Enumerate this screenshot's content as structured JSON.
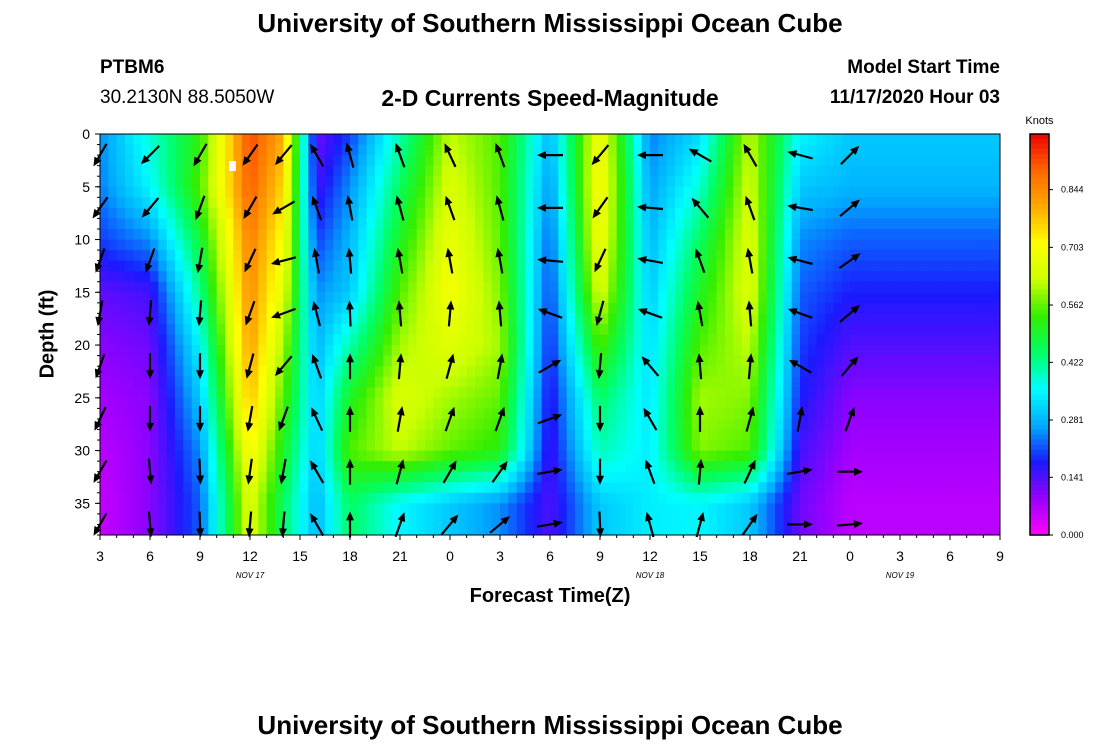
{
  "header": {
    "top_title": "University of Southern Mississippi Ocean Cube",
    "bottom_title": "University of Southern Mississippi Ocean Cube",
    "station_id": "PTBM6",
    "station_coords": "30.2130N 88.5050W",
    "chart_title": "2-D Currents Speed-Magnitude",
    "model_label": "Model Start Time",
    "model_value": "11/17/2020 Hour 03"
  },
  "colors": {
    "scale": [
      "#ff00ff",
      "#9900ff",
      "#1a1aff",
      "#00aaff",
      "#00ffff",
      "#00ff66",
      "#33ee00",
      "#ccff00",
      "#ffff00",
      "#ffaa00",
      "#ff6600",
      "#ee0000"
    ]
  },
  "chart_data": {
    "type": "heatmap",
    "title": "2-D Currents Speed-Magnitude",
    "xlabel": "Forecast Time(Z)",
    "ylabel": "Depth (ft)",
    "x_ticks": [
      "3",
      "6",
      "9",
      "12",
      "15",
      "18",
      "21",
      "0",
      "3",
      "6",
      "9",
      "12",
      "15",
      "18",
      "21",
      "0",
      "3",
      "6",
      "9"
    ],
    "date_labels": [
      {
        "text": "NOV 17",
        "tick_index": 3
      },
      {
        "text": "NOV 18",
        "tick_index": 11
      },
      {
        "text": "NOV 19",
        "tick_index": 16
      }
    ],
    "y_ticks": [
      0,
      5,
      10,
      15,
      20,
      25,
      30,
      35
    ],
    "ylim": [
      0,
      38
    ],
    "xlim_hours": [
      0,
      54
    ],
    "colorbar": {
      "unit": "Knots",
      "ticks": [
        "0.000",
        "0.141",
        "0.281",
        "0.422",
        "0.562",
        "0.703",
        "0.844"
      ],
      "range": [
        0,
        0.98
      ]
    },
    "depths": [
      0,
      5,
      10,
      15,
      20,
      25,
      30,
      35
    ],
    "columns": [
      {
        "hour": 0,
        "speed": [
          0.25,
          0.24,
          0.2,
          0.13,
          0.1,
          0.08,
          0.06,
          0.05
        ],
        "dir": [
          210,
          215,
          200,
          190,
          200,
          205,
          210,
          210
        ]
      },
      {
        "hour": 3,
        "speed": [
          0.38,
          0.35,
          0.25,
          0.15,
          0.12,
          0.1,
          0.1,
          0.1
        ],
        "dir": [
          225,
          220,
          200,
          185,
          180,
          180,
          175,
          175
        ]
      },
      {
        "hour": 6,
        "speed": [
          0.52,
          0.55,
          0.48,
          0.42,
          0.35,
          0.3,
          0.25,
          0.22
        ],
        "dir": [
          210,
          200,
          190,
          185,
          180,
          180,
          178,
          178
        ]
      },
      {
        "hour": 9,
        "speed": [
          0.92,
          0.9,
          0.86,
          0.84,
          0.82,
          0.78,
          0.72,
          0.66
        ],
        "dir": [
          215,
          210,
          205,
          200,
          195,
          190,
          188,
          185
        ]
      },
      {
        "hour": 11,
        "speed": [
          0.8,
          0.75,
          0.7,
          0.66,
          0.6,
          0.55,
          0.5,
          0.45
        ],
        "dir": [
          220,
          240,
          255,
          250,
          220,
          200,
          190,
          185
        ]
      },
      {
        "hour": 13,
        "speed": [
          0.12,
          0.15,
          0.2,
          0.25,
          0.28,
          0.3,
          0.3,
          0.28
        ],
        "dir": [
          330,
          340,
          350,
          345,
          340,
          335,
          330,
          330
        ]
      },
      {
        "hour": 15,
        "speed": [
          0.2,
          0.25,
          0.28,
          0.3,
          0.4,
          0.5,
          0.55,
          0.45
        ],
        "dir": [
          345,
          350,
          355,
          358,
          0,
          0,
          0,
          0
        ]
      },
      {
        "hour": 18,
        "speed": [
          0.4,
          0.45,
          0.5,
          0.55,
          0.6,
          0.65,
          0.62,
          0.35
        ],
        "dir": [
          340,
          345,
          350,
          355,
          5,
          10,
          15,
          20
        ]
      },
      {
        "hour": 21,
        "speed": [
          0.62,
          0.65,
          0.68,
          0.7,
          0.66,
          0.6,
          0.56,
          0.3
        ],
        "dir": [
          335,
          340,
          350,
          5,
          15,
          20,
          30,
          40
        ]
      },
      {
        "hour": 24,
        "speed": [
          0.55,
          0.55,
          0.56,
          0.58,
          0.6,
          0.56,
          0.52,
          0.25
        ],
        "dir": [
          340,
          345,
          350,
          355,
          10,
          20,
          35,
          50
        ]
      },
      {
        "hour": 27,
        "speed": [
          0.28,
          0.25,
          0.22,
          0.2,
          0.18,
          0.16,
          0.15,
          0.14
        ],
        "dir": [
          270,
          270,
          275,
          290,
          60,
          70,
          80,
          80
        ]
      },
      {
        "hour": 30,
        "speed": [
          0.7,
          0.72,
          0.7,
          0.65,
          0.55,
          0.45,
          0.4,
          0.3
        ],
        "dir": [
          220,
          215,
          205,
          195,
          185,
          180,
          180,
          178
        ]
      },
      {
        "hour": 33,
        "speed": [
          0.24,
          0.26,
          0.28,
          0.3,
          0.32,
          0.33,
          0.34,
          0.34
        ],
        "dir": [
          270,
          275,
          280,
          290,
          320,
          330,
          340,
          345
        ]
      },
      {
        "hour": 36,
        "speed": [
          0.32,
          0.38,
          0.45,
          0.5,
          0.55,
          0.6,
          0.58,
          0.35
        ],
        "dir": [
          300,
          320,
          340,
          350,
          355,
          0,
          5,
          15
        ]
      },
      {
        "hour": 39,
        "speed": [
          0.62,
          0.64,
          0.66,
          0.66,
          0.62,
          0.58,
          0.55,
          0.3
        ],
        "dir": [
          330,
          340,
          350,
          355,
          5,
          15,
          25,
          35
        ]
      },
      {
        "hour": 42,
        "speed": [
          0.35,
          0.3,
          0.25,
          0.22,
          0.2,
          0.18,
          0.15,
          0.12
        ],
        "dir": [
          285,
          280,
          285,
          290,
          300,
          10,
          80,
          90
        ]
      },
      {
        "hour": 45,
        "speed": [
          0.3,
          0.28,
          0.22,
          0.18,
          0.14,
          0.1,
          0.08,
          0.06
        ],
        "dir": [
          45,
          50,
          55,
          50,
          40,
          20,
          90,
          85
        ]
      }
    ]
  }
}
